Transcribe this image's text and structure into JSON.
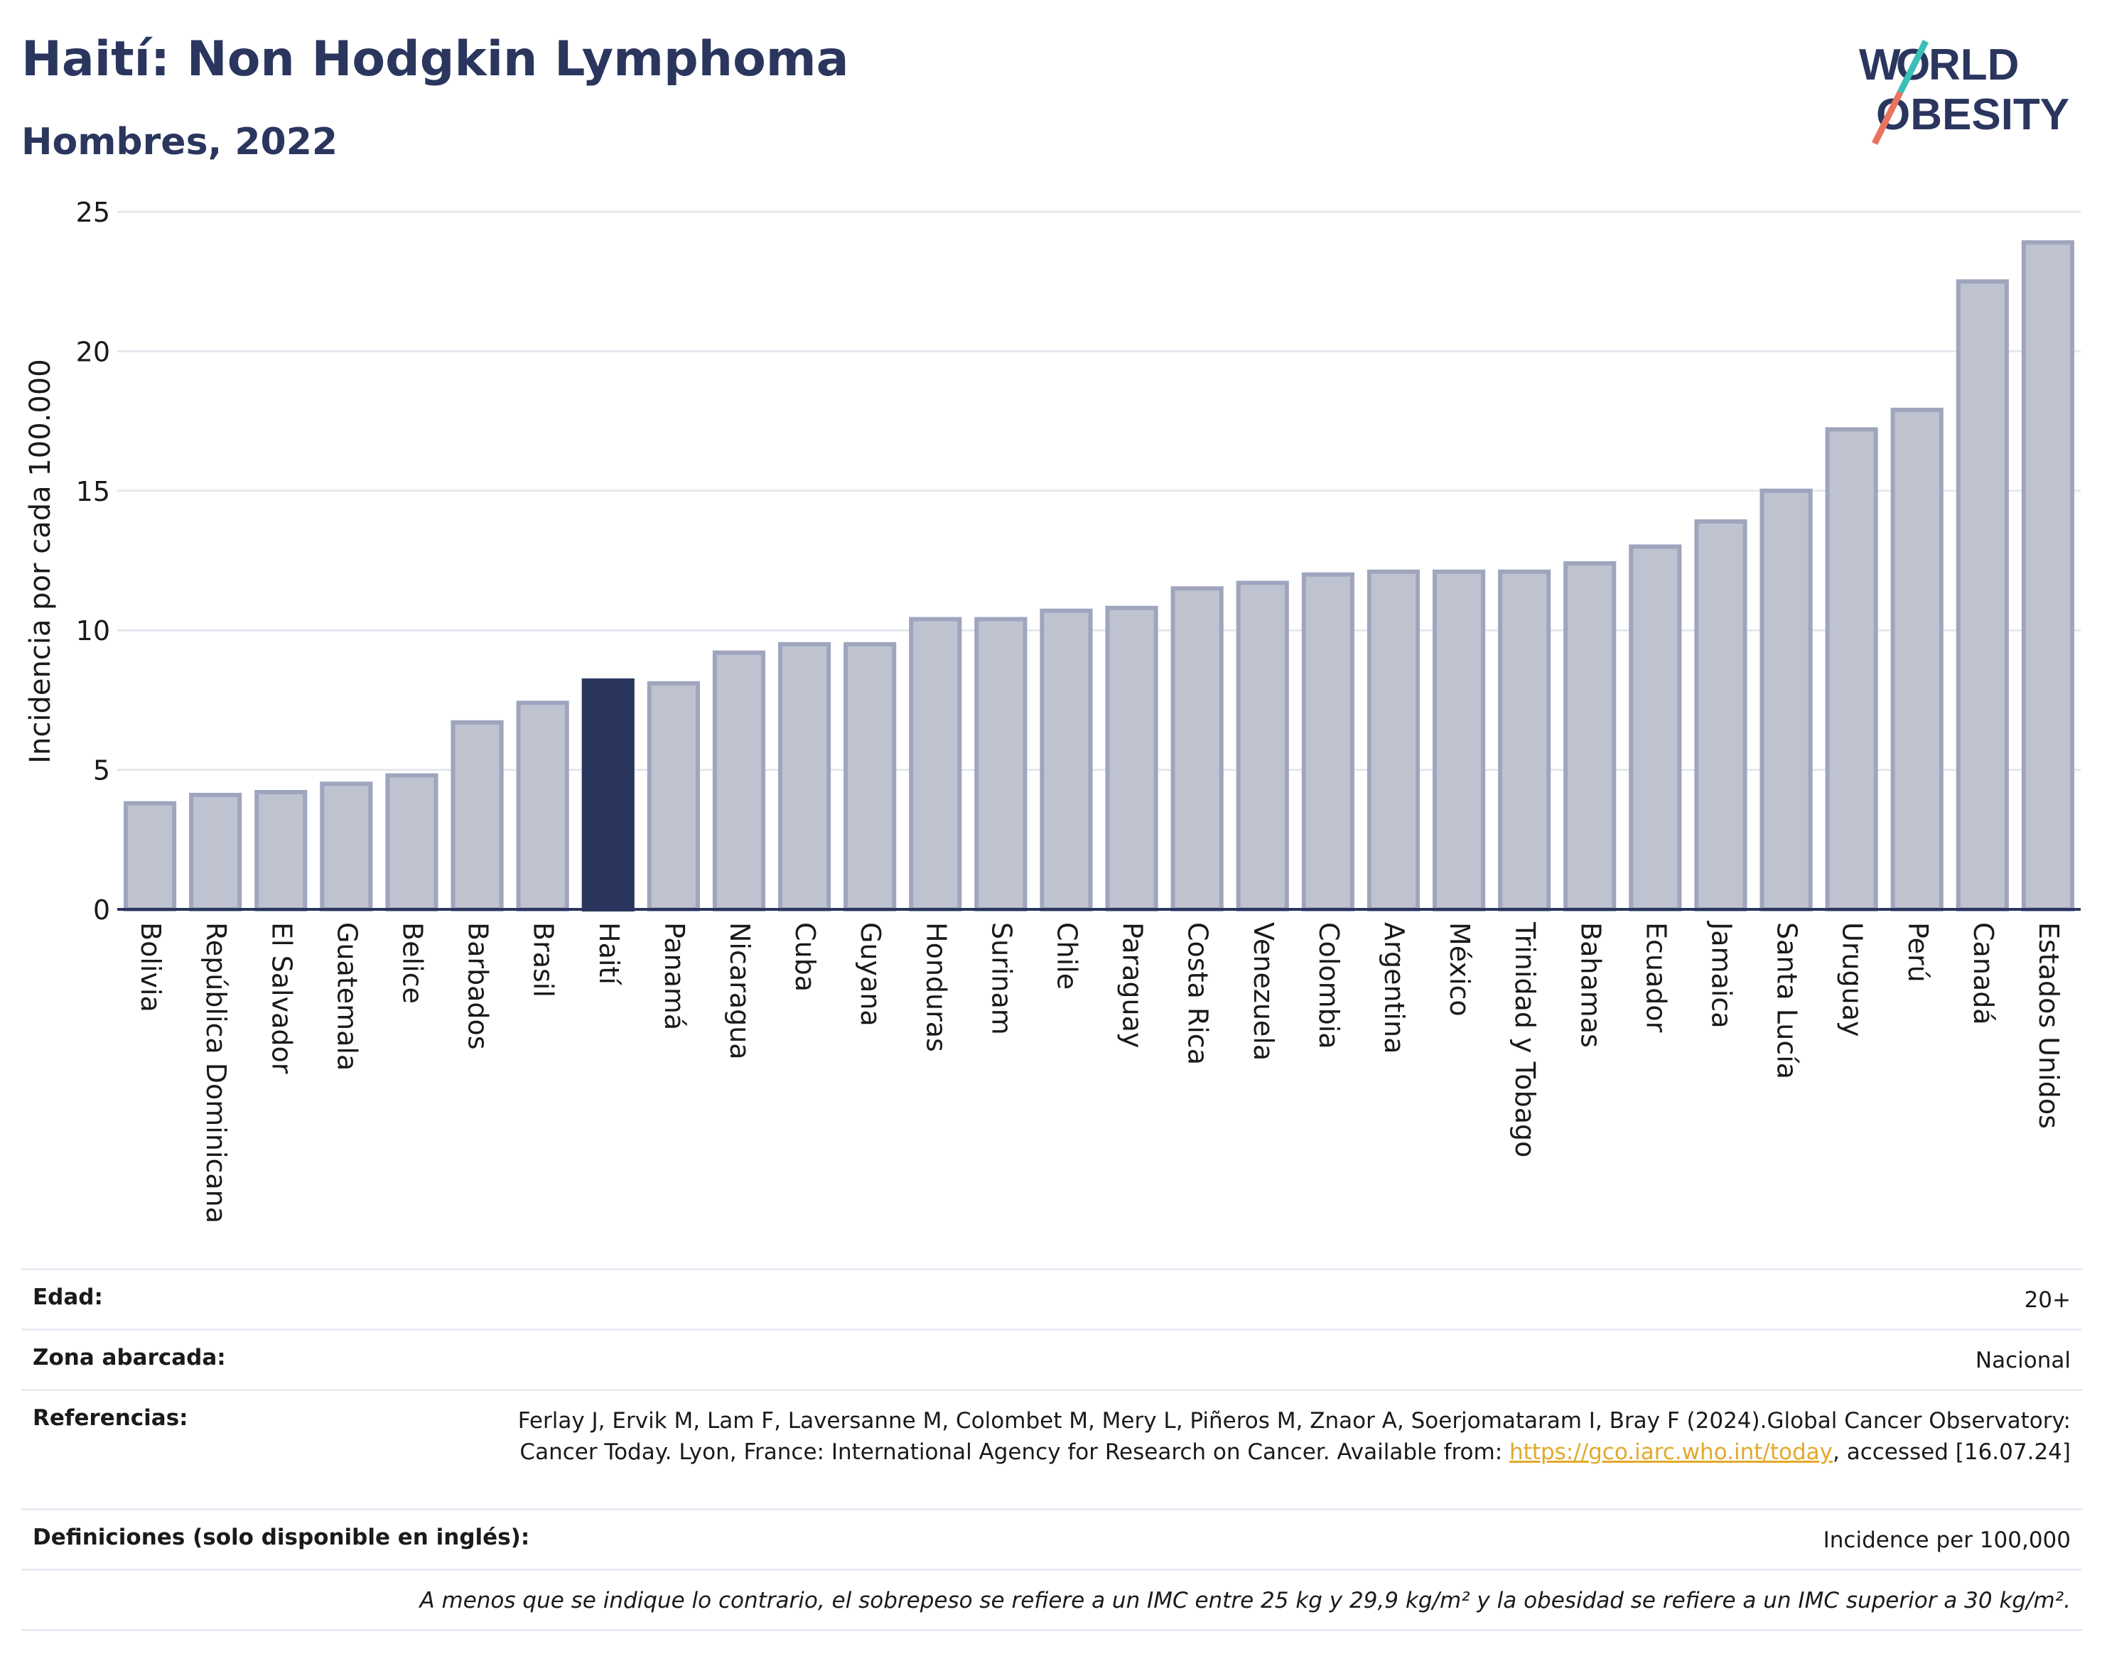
{
  "header": {
    "title": "Haití: Non Hodgkin Lymphoma",
    "subtitle": "Hombres, 2022"
  },
  "logo": {
    "line1": "WORLD",
    "line2": "OBESITY"
  },
  "colors": {
    "bar": "#bfc3d0",
    "bar_border": "#9fa5bd",
    "highlight": "#2b365e",
    "grid": "#e6e8ef",
    "axis": "#2b365e"
  },
  "chart_data": {
    "type": "bar",
    "ylabel": "Incidencia por cada 100.000",
    "ylim": [
      0,
      25
    ],
    "yticks": [
      0,
      5,
      10,
      15,
      20,
      25
    ],
    "highlight": "Haití",
    "categories": [
      "Bolivia",
      "República Dominicana",
      "El Salvador",
      "Guatemala",
      "Belice",
      "Barbados",
      "Brasil",
      "Haití",
      "Panamá",
      "Nicaragua",
      "Cuba",
      "Guyana",
      "Honduras",
      "Surinam",
      "Chile",
      "Paraguay",
      "Costa Rica",
      "Venezuela",
      "Colombia",
      "Argentina",
      "México",
      "Trinidad y Tobago",
      "Bahamas",
      "Ecuador",
      "Jamaica",
      "Santa Lucía",
      "Uruguay",
      "Perú",
      "Canadá",
      "Estados Unidos"
    ],
    "values": [
      3.8,
      4.1,
      4.2,
      4.5,
      4.8,
      6.7,
      7.4,
      8.2,
      8.1,
      9.2,
      9.5,
      9.5,
      10.4,
      10.4,
      10.7,
      10.8,
      11.5,
      11.7,
      12.0,
      12.1,
      12.1,
      12.1,
      12.4,
      13.0,
      13.9,
      15.0,
      17.2,
      17.9,
      22.5,
      23.9
    ],
    "grid": true
  },
  "info": {
    "edad_label": "Edad:",
    "edad_value": "20+",
    "zona_label": "Zona abarcada:",
    "zona_value": "Nacional",
    "ref_label": "Referencias:",
    "ref_text1": "Ferlay J, Ervik M, Lam F, Laversanne M, Colombet M, Mery L, Piñeros M, Znaor A, Soerjomataram I, Bray F (2024).Global Cancer Observatory: Cancer Today. Lyon, France: International Agency for Research on Cancer. Available from: ",
    "ref_link": "https://gco.iarc.who.int/today",
    "ref_text2": ", accessed [16.07.24]",
    "def_label": "Definiciones (solo disponible en inglés):",
    "def_value": "Incidence per 100,000",
    "footnote": "A menos que se indique lo contrario, el sobrepeso se refiere a un IMC entre 25 kg y 29,9 kg/m² y la obesidad se refiere a un IMC superior a 30 kg/m²."
  }
}
